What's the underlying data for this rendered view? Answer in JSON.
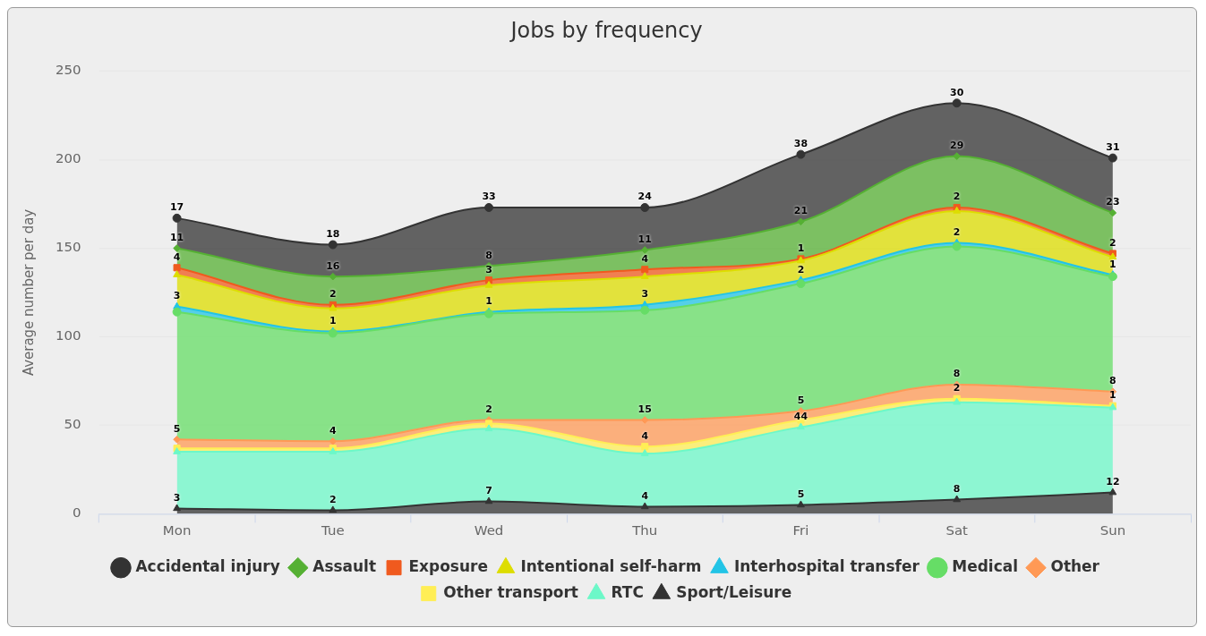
{
  "chart_data": {
    "type": "area",
    "title": "Jobs by frequency",
    "ylabel": "Average number per day",
    "stacked": true,
    "categories": [
      "Mon",
      "Tue",
      "Wed",
      "Thu",
      "Fri",
      "Sat",
      "Sun"
    ],
    "series": [
      {
        "name": "Sport/Leisure",
        "color": "#333333",
        "marker": "triangle",
        "values": [
          3,
          2,
          7,
          4,
          5,
          8,
          12
        ],
        "value_labels": [
          "3",
          "2",
          "7",
          "4",
          "5",
          "8",
          "12"
        ]
      },
      {
        "name": "RTC",
        "color": "#6cf8c8",
        "marker": "triangle",
        "values": [
          32,
          33,
          41,
          30,
          44,
          55,
          48
        ],
        "value_labels": [
          null,
          null,
          null,
          null,
          "44",
          null,
          null
        ]
      },
      {
        "name": "Other transport",
        "color": "#ffee55",
        "marker": "square",
        "values": [
          2,
          2,
          3,
          4,
          4,
          2,
          1
        ],
        "value_labels": [
          null,
          null,
          null,
          "4",
          null,
          "2",
          "1"
        ]
      },
      {
        "name": "Other",
        "color": "#ff9955",
        "marker": "diamond",
        "values": [
          5,
          4,
          2,
          15,
          5,
          8,
          8
        ],
        "value_labels": [
          "5",
          "4",
          "2",
          "15",
          "5",
          "8",
          "8"
        ]
      },
      {
        "name": "Medical",
        "color": "#66dd66",
        "marker": "circle",
        "values": [
          72,
          61,
          60,
          62,
          72,
          78,
          65
        ]
      },
      {
        "name": "Interhospital transfer",
        "color": "#22c4e6",
        "marker": "triangle",
        "values": [
          3,
          1,
          1,
          3,
          2,
          2,
          1
        ],
        "value_labels": [
          "3",
          "1",
          "1",
          "3",
          "2",
          "2",
          "1"
        ]
      },
      {
        "name": "Intentional self-harm",
        "color": "#dddd00",
        "marker": "triangle",
        "values": [
          18,
          13,
          15,
          16,
          11,
          18,
          10
        ]
      },
      {
        "name": "Exposure",
        "color": "#f05a1e",
        "marker": "square",
        "values": [
          4,
          2,
          3,
          4,
          1,
          2,
          2
        ],
        "value_labels": [
          "4",
          "2",
          "3",
          "4",
          "1",
          "2",
          "2"
        ]
      },
      {
        "name": "Assault",
        "color": "#55b033",
        "marker": "diamond",
        "values": [
          11,
          16,
          8,
          11,
          21,
          29,
          23
        ],
        "value_labels": [
          "11",
          "16",
          "8",
          "11",
          "21",
          "29",
          "23"
        ]
      },
      {
        "name": "Accidental injury",
        "color": "#333333",
        "marker": "circle",
        "values": [
          17,
          18,
          33,
          24,
          38,
          30,
          31
        ],
        "value_labels": [
          "17",
          "18",
          "33",
          "24",
          "38",
          "30",
          "31"
        ]
      }
    ],
    "ylim": [
      0,
      250
    ],
    "yticks": [
      0,
      50,
      100,
      150,
      200,
      250
    ],
    "grid": "y",
    "legend": "bottom"
  }
}
